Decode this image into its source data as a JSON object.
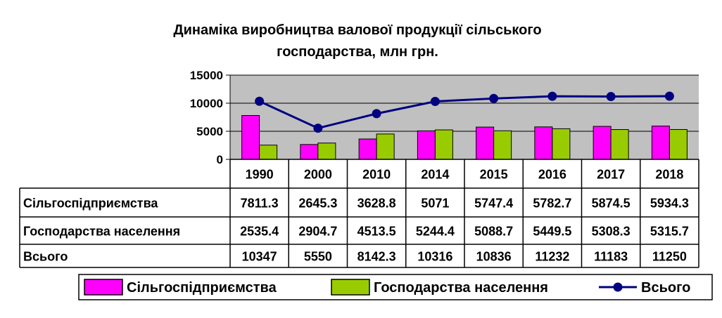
{
  "chart_data": {
    "type": "bar",
    "title_line1": "Динаміка виробництва валової продукції сільського",
    "title_line2": "господарства, млн грн.",
    "categories": [
      "1990",
      "2000",
      "2010",
      "2014",
      "2015",
      "2016",
      "2017",
      "2018"
    ],
    "ylim": [
      0,
      15000
    ],
    "yticks": [
      "0",
      "5000",
      "10000",
      "15000"
    ],
    "grid": true,
    "legend_position": "bottom",
    "data_table": true,
    "series": [
      {
        "name": "Сільгоспідприємства",
        "kind": "bar",
        "color": "#ff00ff",
        "values": [
          7811.3,
          2645.3,
          3628.8,
          5071,
          5747.4,
          5782.7,
          5874.5,
          5934.3
        ],
        "labels": [
          "7811.3",
          "2645.3",
          "3628.8",
          "5071",
          "5747.4",
          "5782.7",
          "5874.5",
          "5934.3"
        ]
      },
      {
        "name": "Господарства населення",
        "kind": "bar",
        "color": "#99cc00",
        "values": [
          2535.4,
          2904.7,
          4513.5,
          5244.4,
          5088.7,
          5449.5,
          5308.3,
          5315.7
        ],
        "labels": [
          "2535.4",
          "2904.7",
          "4513.5",
          "5244.4",
          "5088.7",
          "5449.5",
          "5308.3",
          "5315.7"
        ]
      },
      {
        "name": "Всього",
        "kind": "line",
        "color": "#000080",
        "values": [
          10347,
          5550,
          8142.3,
          10316,
          10836,
          11232,
          11183,
          11250
        ],
        "labels": [
          "10347",
          "5550",
          "8142.3",
          "10316",
          "10836",
          "11232",
          "11183",
          "11250"
        ]
      }
    ],
    "colors": {
      "plot_background": "#c0c0c0",
      "gridline": "#000000"
    }
  }
}
